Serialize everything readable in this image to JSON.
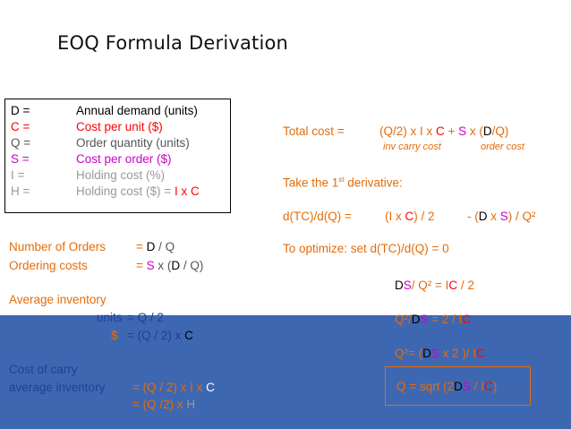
{
  "title": "EOQ Formula Derivation",
  "definitions": [
    {
      "symbol": "D =",
      "desc": "Annual demand (units)",
      "sym_color": "#000000",
      "desc_color": "#000000"
    },
    {
      "symbol": "C =",
      "desc": "Cost per unit ($)",
      "sym_color": "#ff0000",
      "desc_color": "#ff0000"
    },
    {
      "symbol": "Q =",
      "desc": "Order quantity (units)",
      "sym_color": "#555555",
      "desc_color": "#555555"
    },
    {
      "symbol": "S =",
      "desc": "Cost per order ($)",
      "sym_color": "#cc00cc",
      "desc_color": "#cc00cc"
    },
    {
      "symbol": "I  =",
      "desc": "Holding cost (%)",
      "sym_color": "#999999",
      "desc_color": "#999999"
    },
    {
      "symbol": "H =",
      "desc": "Holding cost ($) = ",
      "desc_extra": "I x C",
      "sym_color": "#999999",
      "desc_color": "#999999"
    }
  ],
  "left": {
    "num_orders_label": "Number of Orders",
    "num_orders_eq": "= ",
    "num_orders_d": "D",
    "num_orders_rest": " / Q",
    "ordering_costs_label": "Ordering costs",
    "ordering_costs_eq": "= ",
    "ordering_costs_s": "S",
    "ordering_costs_mid": " x (",
    "ordering_costs_d": "D",
    "ordering_costs_rest": " / Q)",
    "avg_inv_label": "Average inventory",
    "units_label": "units",
    "units_eq": "=   Q / 2",
    "dollar_label": "$",
    "dollar_eq": "=   (Q / 2) x ",
    "dollar_c": "C",
    "carry_label": "Cost of carry",
    "avg_inv2_label": "average inventory",
    "carry_eq": "=  (Q / 2) x I x ",
    "carry_c": "C",
    "carry_eq2": "=  (Q /2) x ",
    "carry_h": "H"
  },
  "right": {
    "total_cost_label": "Total cost  =",
    "total_cost_expr_a": "(Q/2) x I x ",
    "total_cost_c": "C",
    "total_cost_plus": "  +  ",
    "total_cost_s": "S",
    "total_cost_x": " x (",
    "total_cost_d": "D",
    "total_cost_end": "/Q)",
    "inv_carry_cost": "inv carry cost",
    "order_cost": "order cost",
    "first_deriv_a": "Take the 1",
    "first_deriv_sup": "st",
    "first_deriv_b": " derivative:",
    "dtc_label": "d(TC)/d(Q) =",
    "dtc_expr_a": "(I x ",
    "dtc_c": "C",
    "dtc_expr_b": ") / 2",
    "dtc_minus": "-  (",
    "dtc_d": "D",
    "dtc_x": " x ",
    "dtc_s": "S",
    "dtc_end": ") / Q²",
    "optimize": "To optimize: set   d(TC)/d(Q) = 0",
    "step1_d": "D",
    "step1_s": "S",
    "step1_rest": "/ Q² = I",
    "step1_c": "C",
    "step1_end": " / 2",
    "step2_a": "Q²/",
    "step2_d": "D",
    "step2_s": "S",
    "step2_b": " = 2 / I",
    "step2_c": "C",
    "step3_a": "Q²= (",
    "step3_d": "D",
    "step3_s": "S",
    "step3_b": " x 2 )/ I",
    "step3_c": "C",
    "final_a": "Q = sqrt (2",
    "final_d": "D",
    "final_s": "S",
    "final_b": " / I",
    "final_c": "C",
    "final_end": ")"
  }
}
